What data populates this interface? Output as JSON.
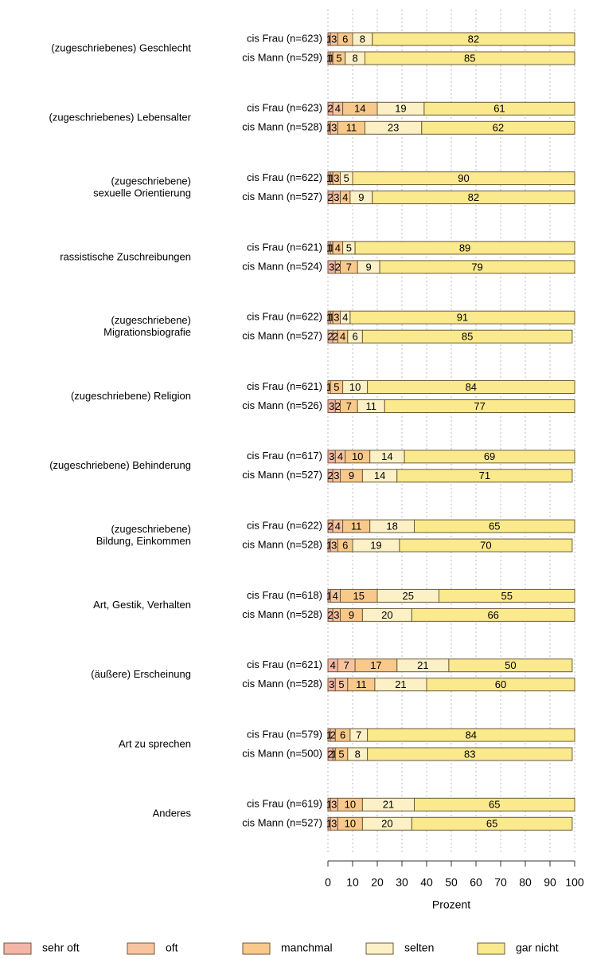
{
  "chart_data": {
    "type": "stacked-barh",
    "groups": [
      [
        "(zugeschriebenes) Geschlecht"
      ],
      [
        "(zugeschriebenes) Lebensalter"
      ],
      [
        "(zugeschriebene)",
        "sexuelle Orientierung"
      ],
      [
        "rassistische Zuschreibungen"
      ],
      [
        "(zugeschriebene)",
        "Migrationsbiografie"
      ],
      [
        "(zugeschriebene) Religion"
      ],
      [
        "(zugeschriebene) Behinderung"
      ],
      [
        "(zugeschriebene)",
        "Bildung, Einkommen"
      ],
      [
        "Art, Gestik, Verhalten"
      ],
      [
        "(äußere) Erscheinung"
      ],
      [
        "Art zu sprechen"
      ],
      [
        "Anderes"
      ]
    ],
    "categories": [
      "cis Frau (n=623)",
      "cis Mann (n=529)",
      "cis Frau (n=623)",
      "cis Mann (n=528)",
      "cis Frau (n=622)",
      "cis Mann (n=527)",
      "cis Frau (n=621)",
      "cis Mann (n=524)",
      "cis Frau (n=622)",
      "cis Mann (n=527)",
      "cis Frau (n=621)",
      "cis Mann (n=526)",
      "cis Frau (n=617)",
      "cis Mann (n=527)",
      "cis Frau (n=622)",
      "cis Mann (n=528)",
      "cis Frau (n=618)",
      "cis Mann (n=528)",
      "cis Frau (n=621)",
      "cis Mann (n=528)",
      "cis Frau (n=579)",
      "cis Mann (n=500)",
      "cis Frau (n=619)",
      "cis Mann (n=527)"
    ],
    "series": [
      {
        "name": "sehr oft",
        "color": "#f4b6a6",
        "values": [
          1,
          1,
          2,
          1,
          1,
          2,
          1,
          3,
          1,
          2,
          0,
          3,
          3,
          2,
          2,
          1,
          1,
          2,
          4,
          3,
          1,
          2,
          1,
          1
        ]
      },
      {
        "name": "oft",
        "color": "#f8c4a0",
        "values": [
          3,
          1,
          4,
          3,
          1,
          3,
          1,
          2,
          1,
          2,
          1,
          2,
          4,
          3,
          4,
          3,
          4,
          3,
          7,
          5,
          2,
          1,
          3,
          3
        ]
      },
      {
        "name": "manchmal",
        "color": "#f8c98a",
        "values": [
          6,
          5,
          14,
          11,
          3,
          4,
          4,
          7,
          3,
          4,
          5,
          7,
          10,
          9,
          11,
          6,
          15,
          9,
          17,
          11,
          6,
          5,
          10,
          10
        ]
      },
      {
        "name": "selten",
        "color": "#fcf1c6",
        "values": [
          8,
          8,
          19,
          23,
          5,
          9,
          5,
          9,
          4,
          6,
          10,
          11,
          14,
          14,
          18,
          19,
          25,
          20,
          21,
          21,
          7,
          8,
          21,
          20
        ]
      },
      {
        "name": "gar nicht",
        "color": "#fbe98e",
        "values": [
          82,
          85,
          61,
          62,
          90,
          82,
          89,
          79,
          91,
          85,
          84,
          77,
          69,
          71,
          65,
          70,
          55,
          66,
          50,
          60,
          84,
          83,
          65,
          65
        ]
      }
    ],
    "xlim": [
      0,
      100
    ],
    "xticks": [
      0,
      10,
      20,
      30,
      40,
      50,
      60,
      70,
      80,
      90,
      100
    ],
    "xlabel": "Prozent",
    "grid": true
  }
}
